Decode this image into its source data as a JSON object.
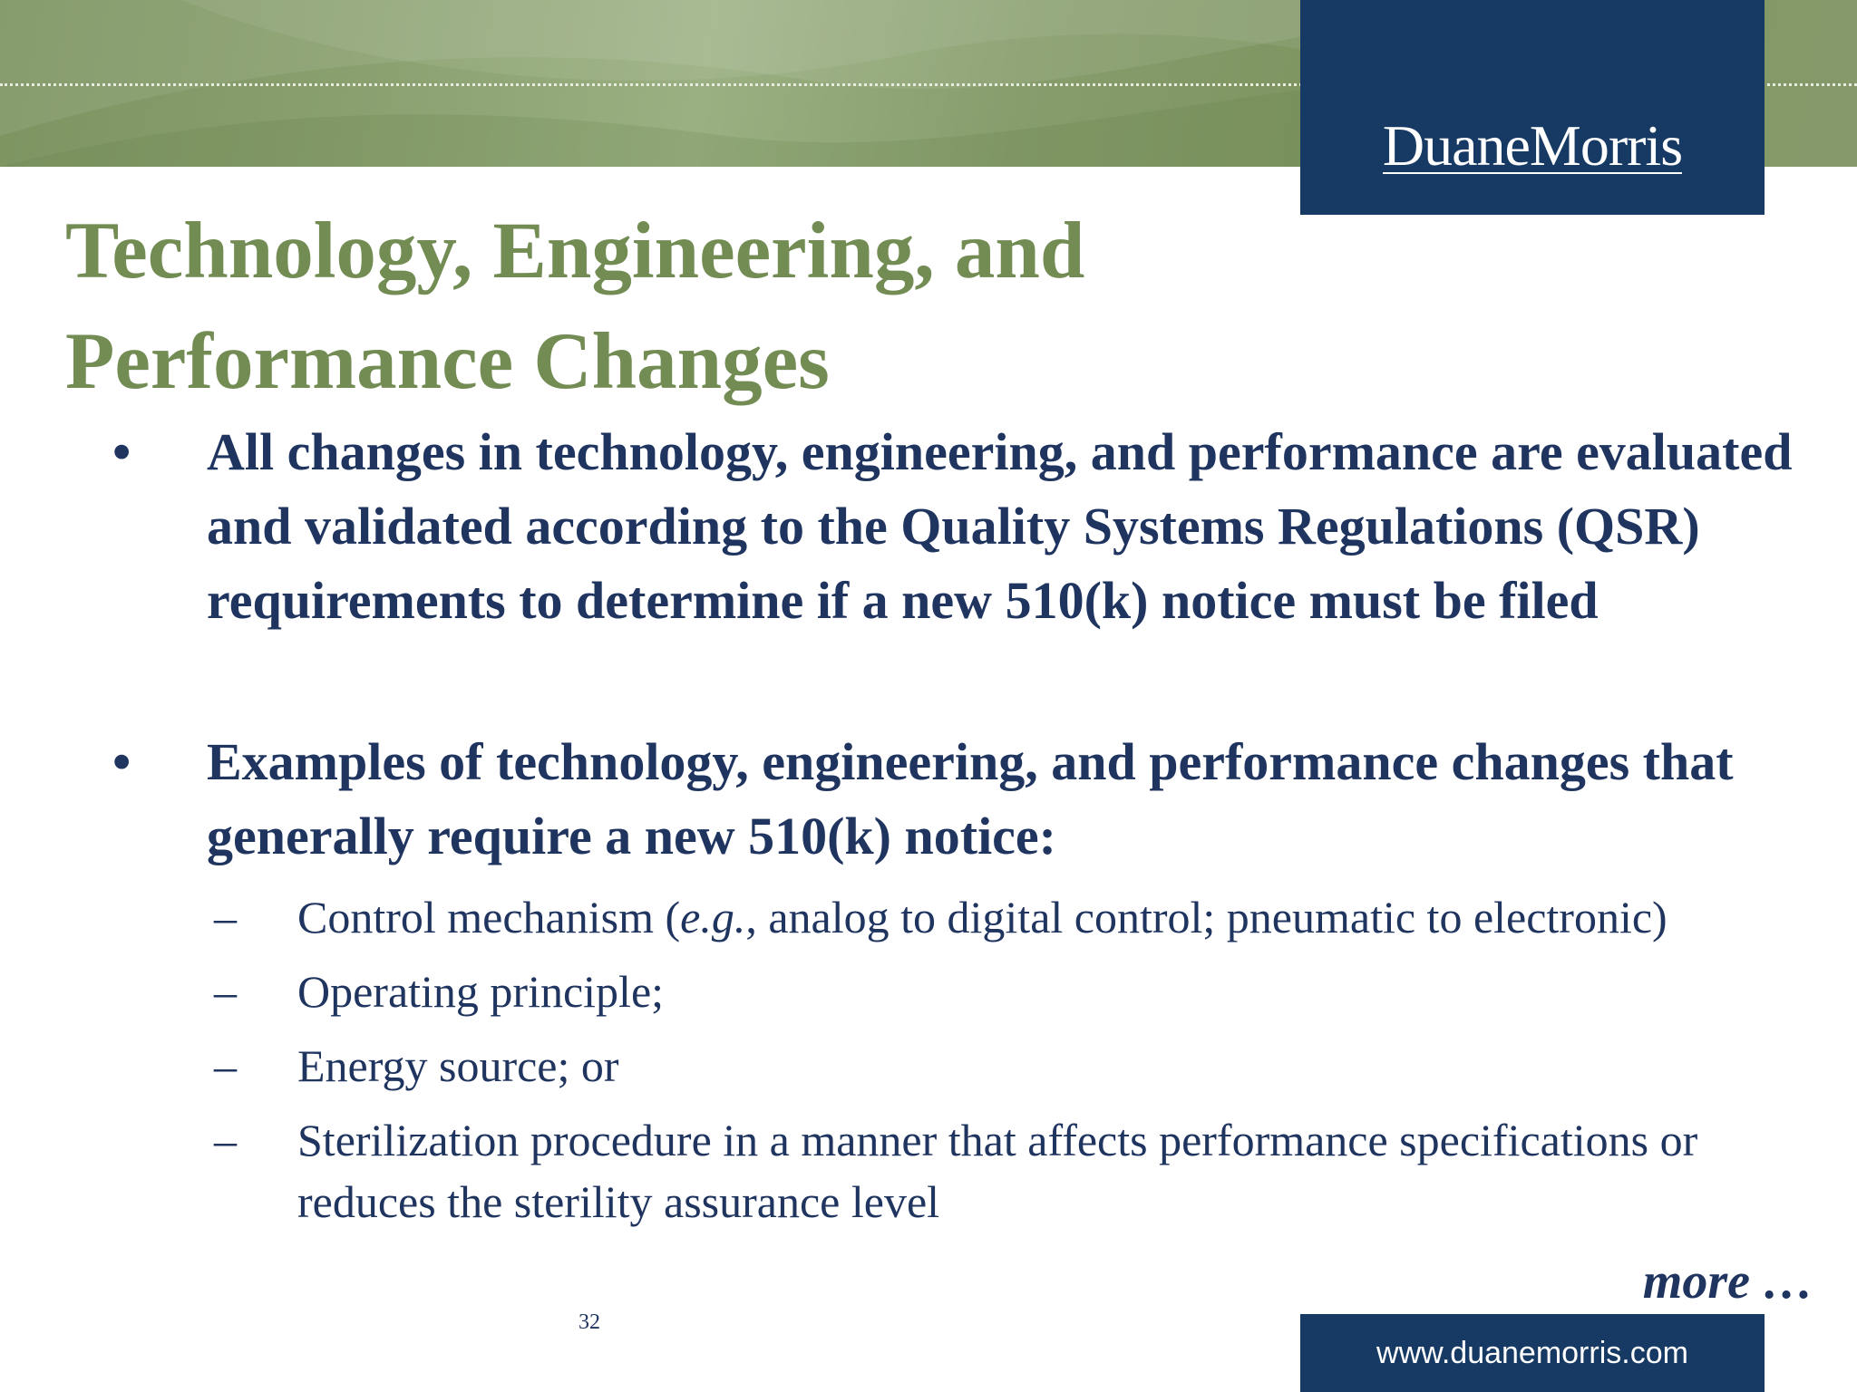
{
  "header": {
    "logo_text": "DuaneMorris",
    "colors": {
      "banner": "#8aa06f",
      "navy": "#173a64",
      "title_green": "#728c53",
      "body_text": "#1f3560"
    }
  },
  "title": {
    "line1": "Technology, Engineering, and",
    "line2": "Performance Changes"
  },
  "bullets": [
    {
      "marker": "•",
      "text": "All changes in technology, engineering, and performance are evaluated and validated according to the Quality Systems Regulations (QSR) requirements to determine if a new 510(k) notice must be filed"
    },
    {
      "marker": "•",
      "text": "Examples of technology, engineering, and performance changes that generally require a new 510(k) notice:"
    }
  ],
  "sub_items": [
    {
      "marker": "–",
      "text_before": "Control mechanism (",
      "text_italic": "e.g.",
      "text_after": ", analog to digital control; pneumatic to electronic)"
    },
    {
      "marker": "–",
      "text": "Operating principle;"
    },
    {
      "marker": "–",
      "text": "Energy source; or"
    },
    {
      "marker": "–",
      "text": "Sterilization procedure in a manner that affects performance specifications or reduces the sterility assurance level"
    }
  ],
  "footer": {
    "more_label": "more …",
    "page_number": "32",
    "website": "www.duanemorris.com"
  }
}
